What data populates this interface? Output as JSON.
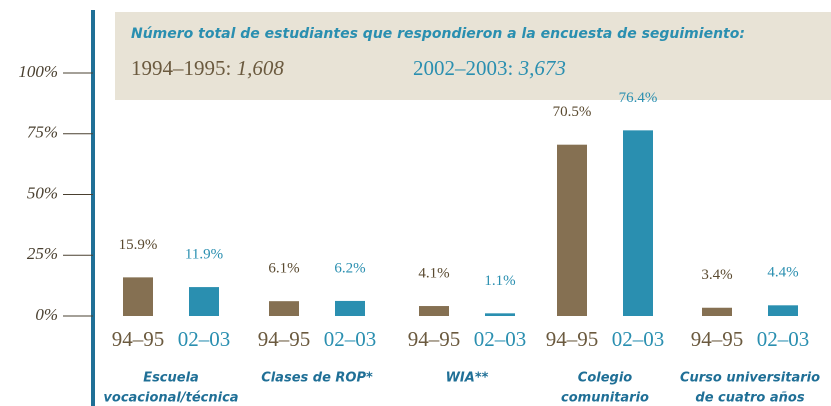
{
  "chart_data": {
    "type": "bar",
    "annotation": {
      "title": "Número total de estudiantes que respondieron a la encuesta de seguimiento:",
      "items": [
        {
          "label": "1994–1995:",
          "value": "1,608"
        },
        {
          "label": "2002–2003:",
          "value": "3,673"
        }
      ]
    },
    "categories": [
      [
        "Escuela",
        "vocacional/técnica"
      ],
      [
        "Clases de ROP*"
      ],
      [
        "WIA**"
      ],
      [
        "Colegio",
        "comunitario"
      ],
      [
        "Curso universitario",
        "de cuatro años"
      ]
    ],
    "series": [
      {
        "name": "94–95",
        "color": "#857052",
        "values": [
          15.9,
          6.1,
          4.1,
          70.5,
          3.4
        ],
        "value_labels": [
          "15.9%",
          "6.1%",
          "4.1%",
          "70.5%",
          "3.4%"
        ]
      },
      {
        "name": "02–03",
        "color": "#2a8fb0",
        "values": [
          11.9,
          6.2,
          1.1,
          76.4,
          4.4
        ],
        "value_labels": [
          "11.9%",
          "6.2%",
          "1.1%",
          "76.4%",
          "4.4%"
        ]
      }
    ],
    "ylim": [
      0,
      100
    ],
    "yticks": [
      {
        "value": 0,
        "label": "0%"
      },
      {
        "value": 25,
        "label": "25%"
      },
      {
        "value": 50,
        "label": "50%"
      },
      {
        "value": 75,
        "label": "75%"
      },
      {
        "value": 100,
        "label": "100%"
      }
    ]
  }
}
